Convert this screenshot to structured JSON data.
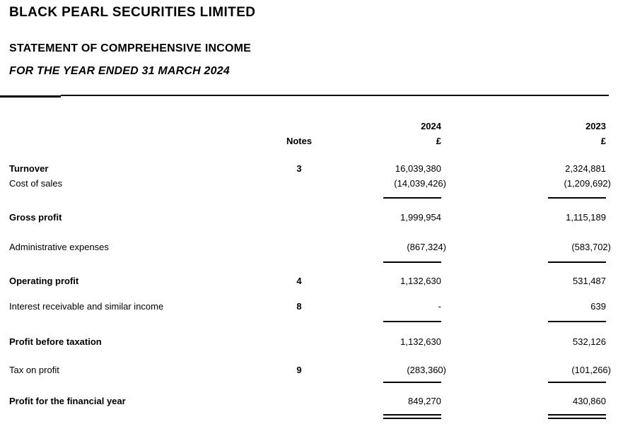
{
  "doc": {
    "company": "BLACK PEARL SECURITIES LIMITED",
    "title": "STATEMENT OF COMPREHENSIVE INCOME",
    "period": "FOR THE YEAR ENDED 31 MARCH 2024"
  },
  "table": {
    "header": {
      "notes": "Notes",
      "year_current": "2024",
      "year_prior": "2023",
      "currency_current": "£",
      "currency_prior": "£"
    },
    "rows": [
      {
        "label": "Turnover",
        "note": "3",
        "current": "16,039,380",
        "prior": "2,324,881"
      },
      {
        "label": "Cost of sales",
        "note": "",
        "current": "(14,039,426)",
        "prior": "(1,209,692)"
      },
      {
        "label": "Gross profit",
        "note": "",
        "current": "1,999,954",
        "prior": "1,115,189"
      },
      {
        "label": "Administrative expenses",
        "note": "",
        "current": "(867,324)",
        "prior": "(583,702)"
      },
      {
        "label": "Operating profit",
        "note": "4",
        "current": "1,132,630",
        "prior": "531,487"
      },
      {
        "label": "Interest receivable and similar income",
        "note": "8",
        "current": "-",
        "prior": "639"
      },
      {
        "label": "Profit before taxation",
        "note": "",
        "current": "1,132,630",
        "prior": "532,126"
      },
      {
        "label": "Tax on profit",
        "note": "9",
        "current": "(283,360)",
        "prior": "(101,266)"
      },
      {
        "label": "Profit for the financial year",
        "note": "",
        "current": "849,270",
        "prior": "430,860"
      }
    ]
  }
}
